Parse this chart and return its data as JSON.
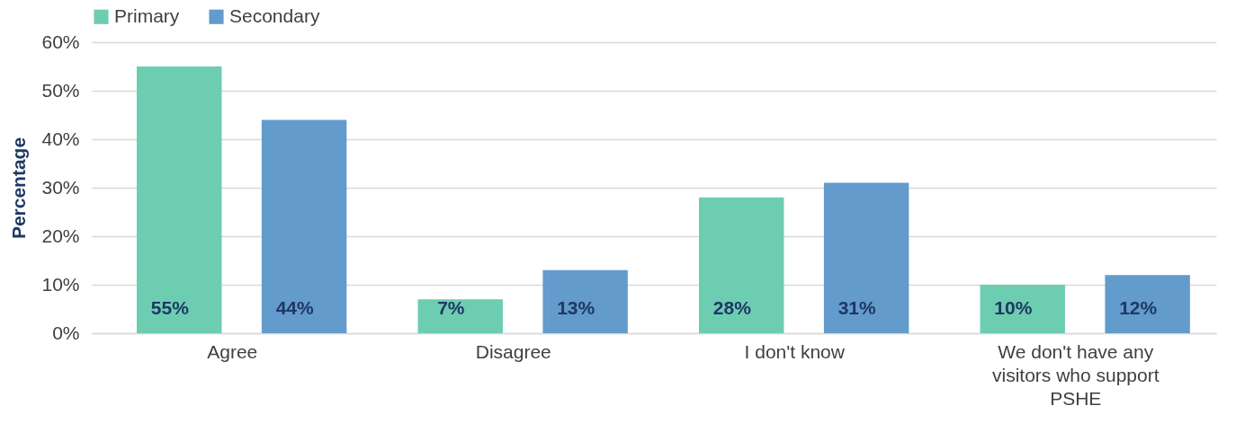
{
  "chart_data": {
    "type": "bar",
    "ylabel": "Percentage",
    "categories": [
      "Agree",
      "Disagree",
      "I don't know",
      "We don't have any visitors who support PSHE"
    ],
    "series": [
      {
        "name": "Primary",
        "color": "#6dcdb1",
        "values": [
          55,
          7,
          28,
          10
        ],
        "value_labels": [
          "55%",
          "7%",
          "28%",
          "10%"
        ]
      },
      {
        "name": "Secondary",
        "color": "#629bcc",
        "values": [
          44,
          13,
          31,
          12
        ],
        "value_labels": [
          "44%",
          "13%",
          "31%",
          "12%"
        ]
      }
    ],
    "ylim": [
      0,
      60
    ],
    "yticks": [
      {
        "value": 0,
        "label": "0%"
      },
      {
        "value": 10,
        "label": "10%"
      },
      {
        "value": 20,
        "label": "20%"
      },
      {
        "value": 30,
        "label": "30%"
      },
      {
        "value": 40,
        "label": "40%"
      },
      {
        "value": 50,
        "label": "50%"
      },
      {
        "value": 60,
        "label": "60%"
      }
    ],
    "grid": "y",
    "legend": "top"
  }
}
